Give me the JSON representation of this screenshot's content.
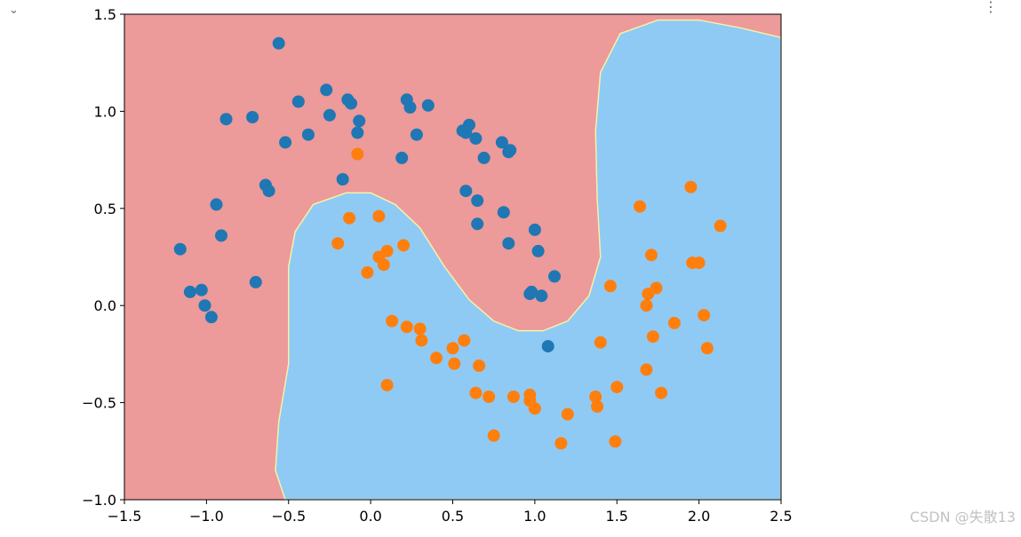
{
  "ui": {
    "collapse_glyph": "⌄",
    "menu_glyph": "⋮",
    "watermark": "CSDN @失散13"
  },
  "colors": {
    "class0_region": "#ec9a9a",
    "class1_region": "#8fcaf5",
    "class0_point": "#1f77b4",
    "class1_point": "#ff7f0e",
    "boundary": "#f5f2a6"
  },
  "chart_data": {
    "type": "scatter",
    "title": "",
    "xlabel": "",
    "ylabel": "",
    "xlim": [
      -1.5,
      2.5
    ],
    "ylim": [
      -1.0,
      1.5
    ],
    "x_ticks": [
      "−1.5",
      "−1.0",
      "−0.5",
      "0.0",
      "0.5",
      "1.0",
      "1.5",
      "2.0",
      "2.5"
    ],
    "y_ticks": [
      "−1.0",
      "−0.5",
      "0.0",
      "0.5",
      "1.0",
      "1.5"
    ],
    "x_tick_values": [
      -1.5,
      -1.0,
      -0.5,
      0.0,
      0.5,
      1.0,
      1.5,
      2.0,
      2.5
    ],
    "y_tick_values": [
      -1.0,
      -0.5,
      0.0,
      0.5,
      1.0,
      1.5
    ],
    "grid": false,
    "decision_boundary": [
      [
        -0.52,
        -1.0
      ],
      [
        -0.58,
        -0.85
      ],
      [
        -0.56,
        -0.6
      ],
      [
        -0.5,
        -0.3
      ],
      [
        -0.5,
        -0.05
      ],
      [
        -0.5,
        0.2
      ],
      [
        -0.46,
        0.38
      ],
      [
        -0.35,
        0.52
      ],
      [
        -0.15,
        0.58
      ],
      [
        0.0,
        0.58
      ],
      [
        0.15,
        0.52
      ],
      [
        0.3,
        0.4
      ],
      [
        0.45,
        0.2
      ],
      [
        0.6,
        0.03
      ],
      [
        0.75,
        -0.08
      ],
      [
        0.9,
        -0.13
      ],
      [
        1.05,
        -0.13
      ],
      [
        1.2,
        -0.08
      ],
      [
        1.33,
        0.05
      ],
      [
        1.4,
        0.25
      ],
      [
        1.38,
        0.55
      ],
      [
        1.37,
        0.9
      ],
      [
        1.4,
        1.2
      ],
      [
        1.52,
        1.4
      ],
      [
        1.75,
        1.47
      ],
      [
        2.0,
        1.47
      ],
      [
        2.25,
        1.43
      ],
      [
        2.5,
        1.38
      ]
    ],
    "series": [
      {
        "values": [
          [
            -0.56,
            1.35
          ],
          [
            -1.16,
            0.29
          ],
          [
            -1.1,
            0.07
          ],
          [
            -1.03,
            0.08
          ],
          [
            -1.01,
            0.0
          ],
          [
            -0.97,
            -0.06
          ],
          [
            -0.94,
            0.52
          ],
          [
            -0.91,
            0.36
          ],
          [
            -0.88,
            0.96
          ],
          [
            -0.72,
            0.97
          ],
          [
            -0.7,
            0.12
          ],
          [
            -0.64,
            0.62
          ],
          [
            -0.62,
            0.59
          ],
          [
            -0.52,
            0.84
          ],
          [
            -0.44,
            1.05
          ],
          [
            -0.38,
            0.88
          ],
          [
            -0.27,
            1.11
          ],
          [
            -0.25,
            0.98
          ],
          [
            -0.17,
            0.65
          ],
          [
            -0.14,
            1.06
          ],
          [
            -0.12,
            1.04
          ],
          [
            -0.07,
            0.95
          ],
          [
            -0.08,
            0.89
          ],
          [
            0.19,
            0.76
          ],
          [
            0.22,
            1.06
          ],
          [
            0.24,
            1.02
          ],
          [
            0.28,
            0.88
          ],
          [
            0.35,
            1.03
          ],
          [
            0.56,
            0.9
          ],
          [
            0.58,
            0.89
          ],
          [
            0.6,
            0.93
          ],
          [
            0.58,
            0.59
          ],
          [
            0.64,
            0.86
          ],
          [
            0.65,
            0.54
          ],
          [
            0.65,
            0.42
          ],
          [
            0.69,
            0.76
          ],
          [
            0.8,
            0.84
          ],
          [
            0.81,
            0.48
          ],
          [
            0.84,
            0.79
          ],
          [
            0.85,
            0.8
          ],
          [
            0.84,
            0.32
          ],
          [
            1.0,
            0.39
          ],
          [
            1.02,
            0.28
          ],
          [
            0.97,
            0.06
          ],
          [
            0.98,
            0.07
          ],
          [
            1.04,
            0.05
          ],
          [
            1.12,
            0.15
          ],
          [
            1.08,
            -0.21
          ]
        ]
      },
      {
        "values": [
          [
            -0.08,
            0.78
          ],
          [
            -0.2,
            0.32
          ],
          [
            -0.13,
            0.45
          ],
          [
            -0.02,
            0.17
          ],
          [
            0.05,
            0.46
          ],
          [
            0.05,
            0.25
          ],
          [
            0.08,
            0.21
          ],
          [
            0.1,
            0.28
          ],
          [
            0.2,
            0.31
          ],
          [
            0.1,
            -0.41
          ],
          [
            0.13,
            -0.08
          ],
          [
            0.22,
            -0.11
          ],
          [
            0.3,
            -0.12
          ],
          [
            0.31,
            -0.18
          ],
          [
            0.4,
            -0.27
          ],
          [
            0.5,
            -0.22
          ],
          [
            0.51,
            -0.3
          ],
          [
            0.57,
            -0.18
          ],
          [
            0.64,
            -0.45
          ],
          [
            0.66,
            -0.31
          ],
          [
            0.72,
            -0.47
          ],
          [
            0.75,
            -0.67
          ],
          [
            0.87,
            -0.47
          ],
          [
            0.97,
            -0.49
          ],
          [
            0.97,
            -0.46
          ],
          [
            1.0,
            -0.53
          ],
          [
            1.2,
            -0.56
          ],
          [
            1.16,
            -0.71
          ],
          [
            1.37,
            -0.47
          ],
          [
            1.38,
            -0.52
          ],
          [
            1.4,
            -0.19
          ],
          [
            1.46,
            0.1
          ],
          [
            1.49,
            -0.7
          ],
          [
            1.5,
            -0.42
          ],
          [
            1.64,
            0.51
          ],
          [
            1.68,
            0.0
          ],
          [
            1.69,
            0.06
          ],
          [
            1.68,
            -0.33
          ],
          [
            1.71,
            0.26
          ],
          [
            1.72,
            -0.16
          ],
          [
            1.74,
            0.09
          ],
          [
            1.77,
            -0.45
          ],
          [
            1.85,
            -0.09
          ],
          [
            1.95,
            0.61
          ],
          [
            1.96,
            0.22
          ],
          [
            2.0,
            0.22
          ],
          [
            2.03,
            -0.05
          ],
          [
            2.05,
            -0.22
          ],
          [
            2.13,
            0.41
          ]
        ]
      }
    ]
  }
}
